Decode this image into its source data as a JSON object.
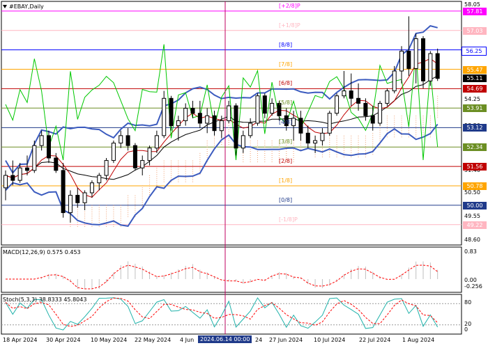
{
  "header": {
    "title": "#EBAY,Daily"
  },
  "macd_label": "MACD(12,26,9) 0.575 0.453",
  "stoch_label": "Stoch(5,3,3) 38.8333 45.8043",
  "crosshair_date": "2024.06.14 00:00",
  "dates": [
    "18 Apr 2024",
    "30 Apr 2024",
    "10 May 2024",
    "22 May 2024",
    "4 Jun",
    "24",
    "27 Jun 2024",
    "10 Jul 2024",
    "22 Jul 2024",
    "1 Aug 2024"
  ],
  "price_tags": [
    {
      "text": "57.81",
      "bg": "#ff00ff",
      "fg": "#ffffff"
    },
    {
      "text": "57.03",
      "bg": "#ffb6c1",
      "fg": "#ffffff"
    },
    {
      "text": "56.25",
      "bg": "#ffffff",
      "fg": "#0000ff"
    },
    {
      "text": "55.47",
      "bg": "#ffa500",
      "fg": "#ffffff"
    },
    {
      "text": "55.11",
      "bg": "#000000",
      "fg": "#ffffff"
    },
    {
      "text": "54.69",
      "bg": "#c00000",
      "fg": "#ffffff"
    },
    {
      "text": "53.91",
      "bg": "#6b8e23",
      "fg": "#ffffff"
    },
    {
      "text": "53.12",
      "bg": "#1f3a8a",
      "fg": "#ffffff"
    },
    {
      "text": "52.34",
      "bg": "#6b8e23",
      "fg": "#ffffff"
    },
    {
      "text": "51.56",
      "bg": "#c00000",
      "fg": "#ffffff"
    },
    {
      "text": "50.78",
      "bg": "#ffa500",
      "fg": "#ffffff"
    },
    {
      "text": "50.00",
      "bg": "#1f3a8a",
      "fg": "#ffffff"
    },
    {
      "text": "49.22",
      "bg": "#ffb6c1",
      "fg": "#ffffff"
    }
  ],
  "scale_labels": [
    "58.05",
    "54.25",
    "53.20",
    "51.40",
    "50.50",
    "49.55",
    "48.60"
  ],
  "macd_scale": [
    "0.83",
    "0.00",
    "-0.256"
  ],
  "stoch_scale": [
    "80",
    "20",
    "0"
  ],
  "murrey": [
    {
      "label": "[+2/8]P",
      "color": "#ff00ff"
    },
    {
      "label": "[+1/8]P",
      "color": "#ffb6c1"
    },
    {
      "label": "[8/8]",
      "color": "#0000ff"
    },
    {
      "label": "[7/8]",
      "color": "#ffa500"
    },
    {
      "label": "[6/8]",
      "color": "#c00000"
    },
    {
      "label": "[5/8]",
      "color": "#6b8e23"
    },
    {
      "label": "[4/8]",
      "color": "#1f3a8a"
    },
    {
      "label": "[3/8]",
      "color": "#6b8e23"
    },
    {
      "label": "[2/8]",
      "color": "#c00000"
    },
    {
      "label": "[1/8]",
      "color": "#ffa500"
    },
    {
      "label": "[0/8]",
      "color": "#1f3a8a"
    },
    {
      "label": "[-1/8]P",
      "color": "#ffb6c1"
    }
  ],
  "colors": {
    "bull": "#ffffff",
    "bear": "#000000",
    "bollinger": "#3b5bbf",
    "ma_red": "#c00000",
    "ma_black": "#000000",
    "rsi_green": "#00c800",
    "cloud": "#f0a070",
    "macd_signal": "#ff0000",
    "macd_hist": "#c0c0c0",
    "stoch_main": "#20b2aa",
    "stoch_signal": "#ff0000",
    "crosshair": "#c00060"
  },
  "chart_data": {
    "type": "candlestick",
    "title": "#EBAY,Daily",
    "ylim": [
      48.4,
      58.2
    ],
    "murrey_levels": [
      57.81,
      57.03,
      56.25,
      55.47,
      54.69,
      53.91,
      53.12,
      52.34,
      51.56,
      50.78,
      50.0,
      49.22
    ],
    "last_price": 55.11,
    "ohlc": [
      [
        50.7,
        51.4,
        50.2,
        51.2
      ],
      [
        51.2,
        51.8,
        50.8,
        51.0
      ],
      [
        51.0,
        51.7,
        50.9,
        51.5
      ],
      [
        51.5,
        52.0,
        51.2,
        51.4
      ],
      [
        51.4,
        52.6,
        51.3,
        52.4
      ],
      [
        52.4,
        53.0,
        52.2,
        52.8
      ],
      [
        52.8,
        53.0,
        51.7,
        51.9
      ],
      [
        51.9,
        52.1,
        51.3,
        51.4
      ],
      [
        51.4,
        51.7,
        49.5,
        49.7
      ],
      [
        49.7,
        50.6,
        49.3,
        50.4
      ],
      [
        50.4,
        50.7,
        49.9,
        50.1
      ],
      [
        50.1,
        50.6,
        49.8,
        50.5
      ],
      [
        50.5,
        51.0,
        50.3,
        50.9
      ],
      [
        50.9,
        51.3,
        50.6,
        51.2
      ],
      [
        51.2,
        51.9,
        51.0,
        51.8
      ],
      [
        51.8,
        52.6,
        51.7,
        52.5
      ],
      [
        52.5,
        53.0,
        52.3,
        52.8
      ],
      [
        52.8,
        53.1,
        52.2,
        52.4
      ],
      [
        52.4,
        52.5,
        51.4,
        51.5
      ],
      [
        51.5,
        52.0,
        51.2,
        51.8
      ],
      [
        51.8,
        52.4,
        51.6,
        52.3
      ],
      [
        52.3,
        53.0,
        52.1,
        52.8
      ],
      [
        52.8,
        54.6,
        52.7,
        54.3
      ],
      [
        54.3,
        54.4,
        53.0,
        53.2
      ],
      [
        53.2,
        53.6,
        52.6,
        53.4
      ],
      [
        53.4,
        54.1,
        53.2,
        53.9
      ],
      [
        53.9,
        54.2,
        53.5,
        53.7
      ],
      [
        53.7,
        54.2,
        53.1,
        53.3
      ],
      [
        53.3,
        53.9,
        52.9,
        53.6
      ],
      [
        53.6,
        53.8,
        52.8,
        53.0
      ],
      [
        53.0,
        53.6,
        52.7,
        53.4
      ],
      [
        53.4,
        54.2,
        53.3,
        54.0
      ],
      [
        54.0,
        54.1,
        52.0,
        52.3
      ],
      [
        52.3,
        53.0,
        52.1,
        52.8
      ],
      [
        52.8,
        53.5,
        52.7,
        53.3
      ],
      [
        53.3,
        54.5,
        53.2,
        54.4
      ],
      [
        54.4,
        54.5,
        53.5,
        53.7
      ],
      [
        53.7,
        54.3,
        53.6,
        54.1
      ],
      [
        54.1,
        54.2,
        53.4,
        53.6
      ],
      [
        53.6,
        53.9,
        53.0,
        53.2
      ],
      [
        53.2,
        53.8,
        52.6,
        53.5
      ],
      [
        53.5,
        53.8,
        52.6,
        52.9
      ],
      [
        52.9,
        53.2,
        52.3,
        52.5
      ],
      [
        52.5,
        52.8,
        52.1,
        52.6
      ],
      [
        52.6,
        53.1,
        52.4,
        52.9
      ],
      [
        52.9,
        53.8,
        52.8,
        53.7
      ],
      [
        53.7,
        54.5,
        53.6,
        54.4
      ],
      [
        54.4,
        55.4,
        54.3,
        54.6
      ],
      [
        54.6,
        55.3,
        54.0,
        54.3
      ],
      [
        54.3,
        54.9,
        53.8,
        54.1
      ],
      [
        54.1,
        54.3,
        53.4,
        53.6
      ],
      [
        53.6,
        54.0,
        53.0,
        53.3
      ],
      [
        53.3,
        54.2,
        53.2,
        54.1
      ],
      [
        54.1,
        54.7,
        54.0,
        54.6
      ],
      [
        54.6,
        55.6,
        54.5,
        55.4
      ],
      [
        55.4,
        56.4,
        54.9,
        56.2
      ],
      [
        56.2,
        57.6,
        55.2,
        55.5
      ],
      [
        55.5,
        56.9,
        54.9,
        56.7
      ],
      [
        56.7,
        56.8,
        54.7,
        55.0
      ],
      [
        55.0,
        56.2,
        54.8,
        56.1
      ],
      [
        56.1,
        56.3,
        55.0,
        55.1
      ]
    ]
  }
}
